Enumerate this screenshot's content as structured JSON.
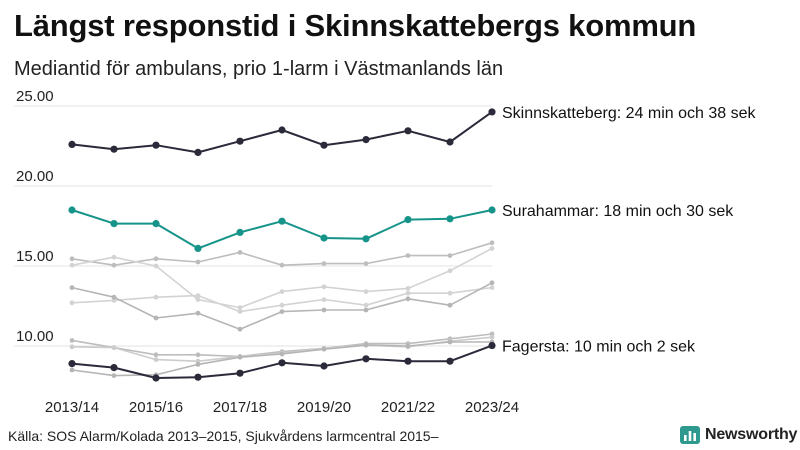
{
  "title": "Längst responstid i Skinnskattebergs kommun",
  "subtitle": "Mediantid för ambulans, prio 1-larm i Västmanlands län",
  "source": "Källa: SOS Alarm/Kolada 2013–2015, Sjukvårdens larmcentral 2015–",
  "brand": {
    "name": "Newsworthy",
    "icon": "newsworthy-logo-icon",
    "color": "#2e9a8f"
  },
  "chart_data": {
    "type": "line",
    "x": [
      "2013/14",
      "2014/15",
      "2015/16",
      "2016/17",
      "2017/18",
      "2018/19",
      "2019/20",
      "2020/21",
      "2021/22",
      "2022/23",
      "2023/24"
    ],
    "x_tick_labels": [
      "2013/14",
      "2015/16",
      "2017/18",
      "2019/20",
      "2021/22",
      "2023/24"
    ],
    "y_ticks": [
      "10.00",
      "15.00",
      "20.00",
      "25.00"
    ],
    "y_tick_values": [
      10,
      15,
      20,
      25
    ],
    "ylim": [
      7.5,
      25.5
    ],
    "grid": true,
    "series": [
      {
        "color": "#bdbdbd",
        "values": [
          15.45,
          15.05,
          15.45,
          15.25,
          15.85,
          15.05,
          15.15,
          15.15,
          15.65,
          15.65,
          16.45
        ]
      },
      {
        "color": "#d3d3d3",
        "values": [
          15.05,
          15.55,
          15.0,
          12.9,
          12.4,
          13.4,
          13.7,
          13.4,
          13.6,
          14.7,
          16.1
        ]
      },
      {
        "color": "#d3d3d3",
        "values": [
          12.7,
          12.85,
          13.05,
          13.15,
          12.15,
          12.55,
          12.9,
          12.55,
          13.3,
          13.3,
          13.65
        ]
      },
      {
        "color": "#b5b5b5",
        "values": [
          13.65,
          13.05,
          11.75,
          12.05,
          11.05,
          12.15,
          12.25,
          12.25,
          12.95,
          12.55,
          13.95
        ]
      },
      {
        "color": "#bdbdbd",
        "values": [
          10.35,
          9.9,
          9.45,
          9.45,
          9.35,
          9.65,
          9.85,
          10.15,
          10.15,
          10.45,
          10.75
        ]
      },
      {
        "color": "#cccccc",
        "values": [
          9.95,
          9.9,
          9.15,
          9.05,
          9.35,
          9.55,
          9.85,
          10.05,
          9.95,
          10.3,
          10.55
        ]
      },
      {
        "color": "#b5b5b5",
        "values": [
          8.5,
          8.15,
          8.2,
          8.85,
          9.3,
          9.5,
          9.8,
          10.05,
          10.0,
          10.25,
          10.25
        ]
      },
      {
        "name": "Skinnskatteberg",
        "color": "#2a2a3a",
        "highlight": true,
        "label": "Skinnskatteberg: 24 min och 38 sek",
        "values": [
          22.6,
          22.3,
          22.55,
          22.1,
          22.8,
          23.5,
          22.55,
          22.9,
          23.45,
          22.75,
          24.63
        ]
      },
      {
        "name": "Surahammar",
        "color": "#17948a",
        "highlight": true,
        "label": "Surahammar: 18 min och 30 sek",
        "values": [
          18.5,
          17.65,
          17.65,
          16.1,
          17.1,
          17.8,
          16.75,
          16.7,
          17.9,
          17.95,
          18.5
        ]
      },
      {
        "name": "Fagersta",
        "color": "#2a2a3a",
        "highlight": true,
        "label": "Fagersta: 10 min och 2 sek",
        "values": [
          8.9,
          8.65,
          8.0,
          8.05,
          8.3,
          8.95,
          8.75,
          9.2,
          9.05,
          9.05,
          10.03
        ]
      }
    ]
  }
}
